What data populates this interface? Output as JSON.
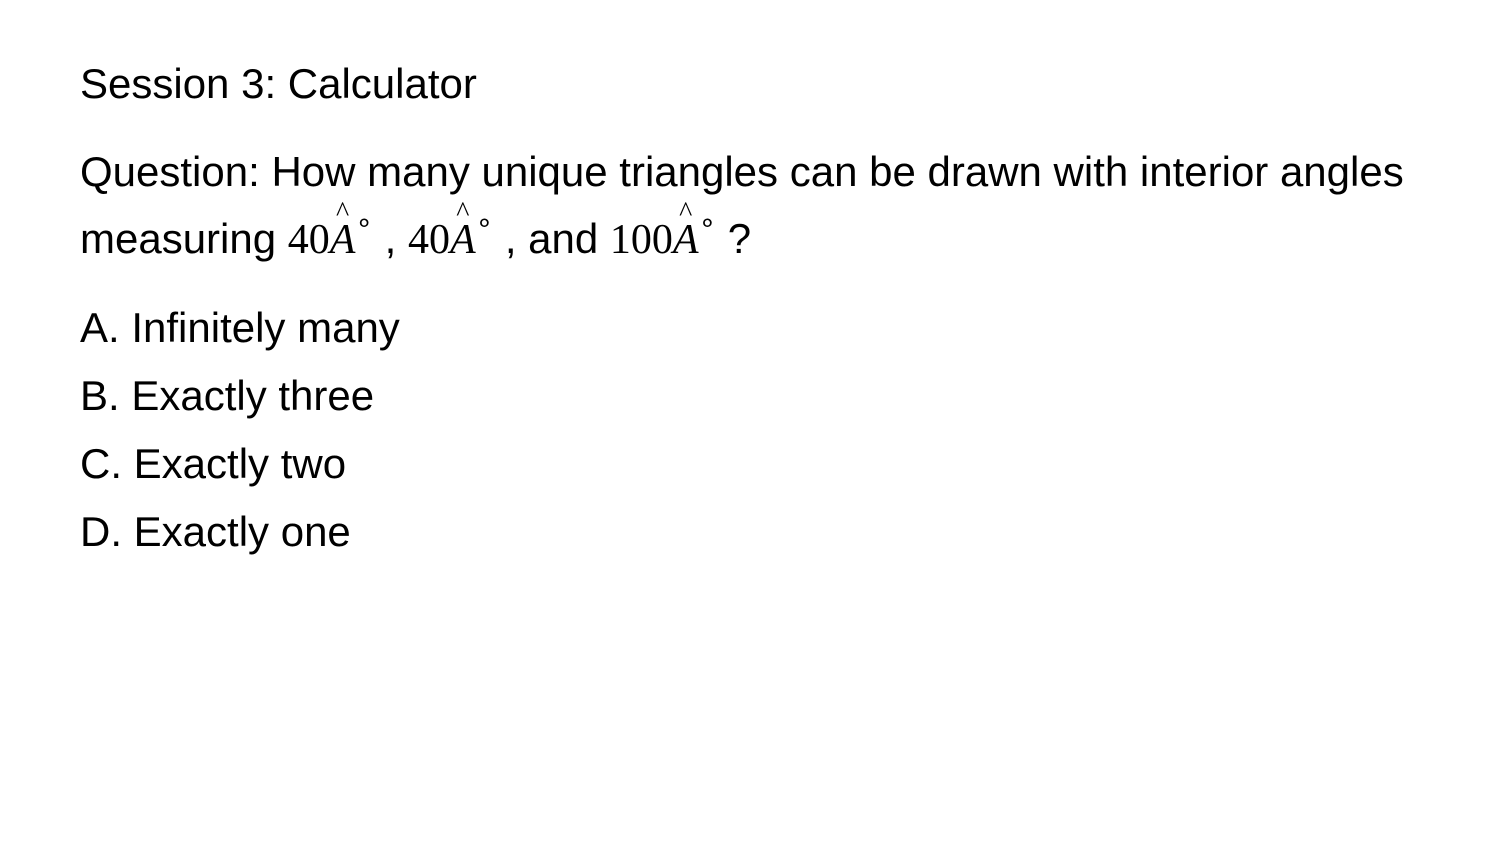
{
  "session": {
    "title": "Session 3: Calculator"
  },
  "question": {
    "prefix": "Question: How many unique triangles can be drawn with interior angles measuring ",
    "angle1_num": "40",
    "angle_var": "A",
    "separator1": " , ",
    "angle2_num": "40",
    "separator2": " , and ",
    "angle3_num": "100",
    "suffix": " ?"
  },
  "options": {
    "a": "A. Infinitely many",
    "b": "B. Exactly three",
    "c": "C. Exactly two",
    "d": "D. Exactly one"
  },
  "styling": {
    "background_color": "#ffffff",
    "text_color": "#000000",
    "body_fontsize": 42,
    "math_font_family": "Times New Roman",
    "degree_fontsize": 28,
    "line_height": 1.6
  }
}
